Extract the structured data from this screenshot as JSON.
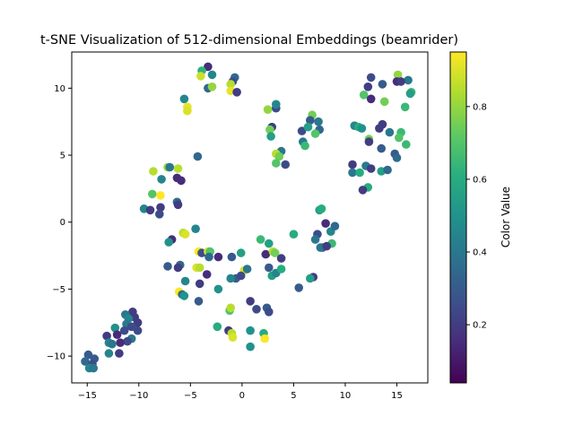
{
  "chart_data": {
    "type": "scatter",
    "title": "t-SNE Visualization of 512-dimensional Embeddings (beamrider)",
    "xlabel": "",
    "ylabel": "",
    "xlim": [
      -16.5,
      18
    ],
    "ylim": [
      -12,
      12.7
    ],
    "xticks": [
      -15,
      -10,
      -5,
      0,
      5,
      10,
      15
    ],
    "yticks": [
      -10,
      -5,
      0,
      5,
      10
    ],
    "grid": false,
    "colormap": "viridis",
    "colorbar": {
      "label": "Color Value",
      "range": [
        0.04,
        0.95
      ],
      "ticks": [
        0.2,
        0.4,
        0.6,
        0.8
      ]
    },
    "points": [
      [
        -3.3,
        11.6,
        0.15
      ],
      [
        -3.9,
        11.3,
        0.62
      ],
      [
        -2.9,
        11.0,
        0.45
      ],
      [
        -4.0,
        10.9,
        0.88
      ],
      [
        -0.7,
        10.8,
        0.35
      ],
      [
        -0.9,
        10.5,
        0.25
      ],
      [
        -1.1,
        10.3,
        0.85
      ],
      [
        -3.3,
        10.0,
        0.35
      ],
      [
        -2.9,
        10.1,
        0.8
      ],
      [
        -1.1,
        9.8,
        0.92
      ],
      [
        -0.5,
        9.7,
        0.2
      ],
      [
        -5.6,
        9.2,
        0.45
      ],
      [
        -5.3,
        8.6,
        0.92
      ],
      [
        -5.3,
        8.3,
        0.9
      ],
      [
        15.1,
        11.0,
        0.8
      ],
      [
        12.5,
        10.8,
        0.25
      ],
      [
        16.1,
        10.6,
        0.4
      ],
      [
        15.0,
        10.5,
        0.15
      ],
      [
        15.4,
        10.5,
        0.2
      ],
      [
        12.2,
        10.1,
        0.2
      ],
      [
        13.6,
        10.3,
        0.3
      ],
      [
        16.4,
        9.7,
        0.65
      ],
      [
        16.3,
        9.6,
        0.55
      ],
      [
        11.8,
        9.5,
        0.7
      ],
      [
        12.5,
        9.2,
        0.15
      ],
      [
        13.8,
        9.0,
        0.75
      ],
      [
        15.8,
        8.6,
        0.65
      ],
      [
        2.5,
        8.4,
        0.8
      ],
      [
        3.3,
        8.5,
        0.25
      ],
      [
        3.3,
        8.8,
        0.45
      ],
      [
        6.8,
        8.0,
        0.75
      ],
      [
        6.6,
        7.6,
        0.3
      ],
      [
        7.4,
        7.5,
        0.4
      ],
      [
        2.9,
        7.1,
        0.2
      ],
      [
        2.7,
        6.9,
        0.75
      ],
      [
        5.8,
        6.8,
        0.25
      ],
      [
        6.4,
        7.1,
        0.55
      ],
      [
        7.5,
        6.9,
        0.35
      ],
      [
        7.1,
        6.6,
        0.7
      ],
      [
        2.8,
        6.4,
        0.55
      ],
      [
        5.9,
        6.0,
        0.4
      ],
      [
        6.1,
        5.7,
        0.65
      ],
      [
        3.8,
        5.3,
        0.4
      ],
      [
        3.3,
        5.1,
        0.85
      ],
      [
        3.6,
        4.9,
        0.75
      ],
      [
        4.2,
        4.3,
        0.25
      ],
      [
        3.3,
        4.4,
        0.7
      ],
      [
        10.9,
        7.2,
        0.45
      ],
      [
        11.3,
        7.1,
        0.6
      ],
      [
        11.6,
        7.0,
        0.5
      ],
      [
        13.6,
        7.3,
        0.2
      ],
      [
        13.3,
        7.0,
        0.2
      ],
      [
        12.3,
        6.2,
        0.75
      ],
      [
        12.3,
        6.0,
        0.2
      ],
      [
        14.3,
        6.7,
        0.4
      ],
      [
        15.4,
        6.7,
        0.65
      ],
      [
        15.2,
        6.3,
        0.7
      ],
      [
        15.9,
        5.8,
        0.65
      ],
      [
        13.5,
        5.5,
        0.3
      ],
      [
        14.8,
        5.1,
        0.3
      ],
      [
        15.0,
        4.8,
        0.35
      ],
      [
        10.7,
        4.3,
        0.2
      ],
      [
        12.0,
        4.2,
        0.4
      ],
      [
        12.5,
        4.0,
        0.2
      ],
      [
        10.7,
        3.7,
        0.4
      ],
      [
        11.4,
        3.7,
        0.6
      ],
      [
        13.5,
        3.8,
        0.55
      ],
      [
        14.1,
        3.9,
        0.35
      ],
      [
        12.2,
        2.6,
        0.6
      ],
      [
        11.7,
        2.4,
        0.2
      ],
      [
        -7.2,
        4.1,
        0.8
      ],
      [
        -7.0,
        4.1,
        0.4
      ],
      [
        -6.2,
        4.0,
        0.85
      ],
      [
        -4.3,
        4.9,
        0.35
      ],
      [
        -8.6,
        3.8,
        0.85
      ],
      [
        -7.8,
        3.2,
        0.45
      ],
      [
        -6.3,
        3.3,
        0.15
      ],
      [
        -5.9,
        3.1,
        0.15
      ],
      [
        -8.7,
        2.1,
        0.7
      ],
      [
        -7.9,
        2.0,
        0.95
      ],
      [
        -6.3,
        1.5,
        0.35
      ],
      [
        -6.2,
        1.3,
        0.2
      ],
      [
        -9.5,
        1.0,
        0.45
      ],
      [
        -8.9,
        0.9,
        0.2
      ],
      [
        -7.9,
        1.1,
        0.2
      ],
      [
        -8.0,
        0.6,
        0.25
      ],
      [
        -5.7,
        -0.8,
        0.85
      ],
      [
        -5.5,
        -0.9,
        0.9
      ],
      [
        -4.5,
        -0.5,
        0.45
      ],
      [
        -6.8,
        -1.3,
        0.15
      ],
      [
        -7.1,
        -1.5,
        0.5
      ],
      [
        -4.2,
        -2.2,
        0.95
      ],
      [
        -3.9,
        -2.3,
        0.25
      ],
      [
        -3.3,
        -2.2,
        0.9
      ],
      [
        -3.1,
        -2.2,
        0.7
      ],
      [
        -7.2,
        -3.3,
        0.3
      ],
      [
        -6.0,
        -3.2,
        0.35
      ],
      [
        -6.2,
        -3.4,
        0.2
      ],
      [
        -4.4,
        -3.4,
        0.9
      ],
      [
        -4.1,
        -3.4,
        0.85
      ],
      [
        -3.2,
        -2.6,
        0.35
      ],
      [
        -2.3,
        -2.6,
        0.15
      ],
      [
        -1.0,
        -2.6,
        0.3
      ],
      [
        -0.1,
        -2.3,
        0.55
      ],
      [
        -3.4,
        -3.9,
        0.15
      ],
      [
        -5.5,
        -4.4,
        0.45
      ],
      [
        -4.1,
        -4.6,
        0.2
      ],
      [
        -2.3,
        -5.0,
        0.5
      ],
      [
        -6.1,
        -5.2,
        0.95
      ],
      [
        -5.8,
        -5.4,
        0.35
      ],
      [
        -5.6,
        -5.5,
        0.5
      ],
      [
        -4.2,
        -5.9,
        0.3
      ],
      [
        0.2,
        -3.6,
        0.9
      ],
      [
        0.5,
        -3.5,
        0.4
      ],
      [
        -0.6,
        -4.2,
        0.3
      ],
      [
        -0.1,
        -4.0,
        0.25
      ],
      [
        -1.1,
        -4.2,
        0.45
      ],
      [
        1.8,
        -1.3,
        0.65
      ],
      [
        2.3,
        -2.4,
        0.15
      ],
      [
        2.6,
        -1.6,
        0.55
      ],
      [
        3.0,
        -2.2,
        0.85
      ],
      [
        3.2,
        -2.3,
        0.75
      ],
      [
        3.8,
        -2.7,
        0.2
      ],
      [
        2.6,
        -3.4,
        0.3
      ],
      [
        2.9,
        -4.0,
        0.55
      ],
      [
        3.3,
        -3.8,
        0.45
      ],
      [
        3.8,
        -3.5,
        0.6
      ],
      [
        5.0,
        -0.9,
        0.6
      ],
      [
        5.5,
        -4.9,
        0.3
      ],
      [
        6.9,
        -4.1,
        0.2
      ],
      [
        6.6,
        -4.2,
        0.55
      ],
      [
        7.5,
        0.9,
        0.55
      ],
      [
        7.7,
        1.0,
        0.6
      ],
      [
        8.1,
        -0.1,
        0.15
      ],
      [
        7.3,
        -0.9,
        0.25
      ],
      [
        8.6,
        -0.7,
        0.45
      ],
      [
        9.0,
        -0.3,
        0.35
      ],
      [
        7.1,
        -1.3,
        0.4
      ],
      [
        8.7,
        -1.6,
        0.65
      ],
      [
        7.8,
        -1.9,
        0.25
      ],
      [
        7.6,
        -1.9,
        0.4
      ],
      [
        8.2,
        -1.8,
        0.2
      ],
      [
        -2.4,
        -7.8,
        0.6
      ],
      [
        -1.2,
        -6.6,
        0.7
      ],
      [
        -1.1,
        -6.4,
        0.85
      ],
      [
        0.8,
        -5.9,
        0.2
      ],
      [
        1.4,
        -6.5,
        0.25
      ],
      [
        2.4,
        -6.4,
        0.3
      ],
      [
        2.6,
        -6.7,
        0.25
      ],
      [
        -1.3,
        -8.1,
        0.2
      ],
      [
        -1.0,
        -8.3,
        0.85
      ],
      [
        -0.9,
        -8.6,
        0.9
      ],
      [
        0.8,
        -8.1,
        0.5
      ],
      [
        2.1,
        -8.3,
        0.6
      ],
      [
        2.2,
        -8.7,
        0.95
      ],
      [
        0.8,
        -9.3,
        0.5
      ],
      [
        -10.6,
        -6.7,
        0.2
      ],
      [
        -11.3,
        -6.9,
        0.4
      ],
      [
        -10.4,
        -7.1,
        0.2
      ],
      [
        -11.0,
        -7.2,
        0.45
      ],
      [
        -10.1,
        -7.5,
        0.2
      ],
      [
        -11.2,
        -7.6,
        0.4
      ],
      [
        -10.7,
        -7.8,
        0.25
      ],
      [
        -12.3,
        -7.9,
        0.5
      ],
      [
        -11.4,
        -8.1,
        0.25
      ],
      [
        -10.1,
        -8.1,
        0.25
      ],
      [
        -12.1,
        -8.4,
        0.15
      ],
      [
        -13.1,
        -8.5,
        0.2
      ],
      [
        -10.7,
        -8.7,
        0.4
      ],
      [
        -11.1,
        -8.9,
        0.25
      ],
      [
        -12.9,
        -9.0,
        0.45
      ],
      [
        -11.8,
        -9.0,
        0.15
      ],
      [
        -12.6,
        -9.1,
        0.4
      ],
      [
        -11.9,
        -9.8,
        0.2
      ],
      [
        -12.9,
        -9.8,
        0.45
      ],
      [
        -14.9,
        -9.9,
        0.3
      ],
      [
        -14.3,
        -10.2,
        0.3
      ],
      [
        -15.2,
        -10.4,
        0.35
      ],
      [
        -14.5,
        -10.6,
        0.25
      ],
      [
        -14.8,
        -10.9,
        0.45
      ],
      [
        -14.4,
        -10.9,
        0.4
      ]
    ]
  }
}
